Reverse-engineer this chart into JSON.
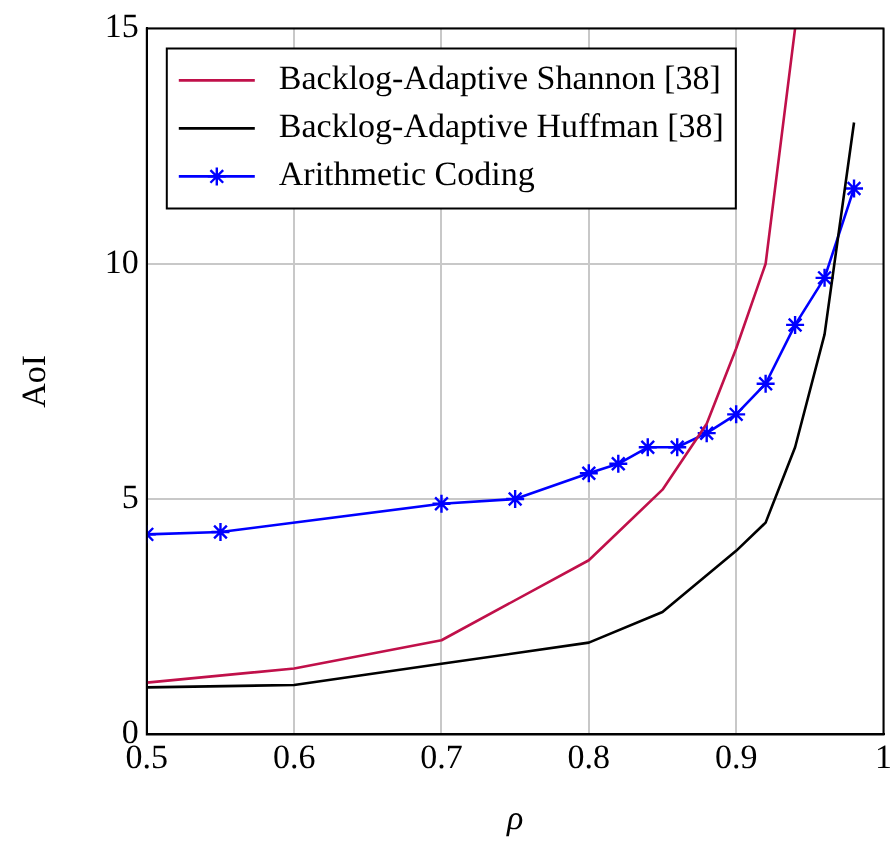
{
  "chart_data": {
    "type": "line",
    "xlabel": "ρ",
    "ylabel": "AoI",
    "xlim": [
      0.5,
      1
    ],
    "xticks": [
      0.5,
      0.6,
      0.7,
      0.8,
      0.9,
      1
    ],
    "ylim": [
      0,
      15
    ],
    "yticks": [
      0,
      5,
      10,
      15
    ],
    "grid": true,
    "legend": "top left",
    "series": [
      {
        "name": "Backlog-Adaptive Shannon [38]",
        "color": "#c0104a",
        "marker": "none",
        "x": [
          0.5,
          0.6,
          0.7,
          0.8,
          0.85,
          0.88,
          0.9,
          0.92,
          0.94
        ],
        "values": [
          1.1,
          1.4,
          2.0,
          3.7,
          5.2,
          6.6,
          8.2,
          10.0,
          15
        ]
      },
      {
        "name": "Backlog-Adaptive Huffman [38]",
        "color": "#000000",
        "marker": "none",
        "x": [
          0.5,
          0.6,
          0.7,
          0.8,
          0.85,
          0.9,
          0.92,
          0.94,
          0.96,
          0.98
        ],
        "values": [
          1.0,
          1.05,
          1.5,
          1.95,
          2.6,
          3.9,
          4.5,
          6.1,
          8.5,
          13.0
        ]
      },
      {
        "name": "Arithmetic Coding",
        "color": "#0000ff",
        "marker": "cross",
        "x": [
          0.5,
          0.55,
          0.7,
          0.75,
          0.8,
          0.82,
          0.84,
          0.86,
          0.88,
          0.9,
          0.92,
          0.94,
          0.96,
          0.98
        ],
        "values": [
          4.25,
          4.3,
          4.9,
          5.0,
          5.55,
          5.75,
          6.1,
          6.1,
          6.4,
          6.8,
          7.45,
          8.7,
          9.7,
          11.6
        ]
      }
    ]
  }
}
